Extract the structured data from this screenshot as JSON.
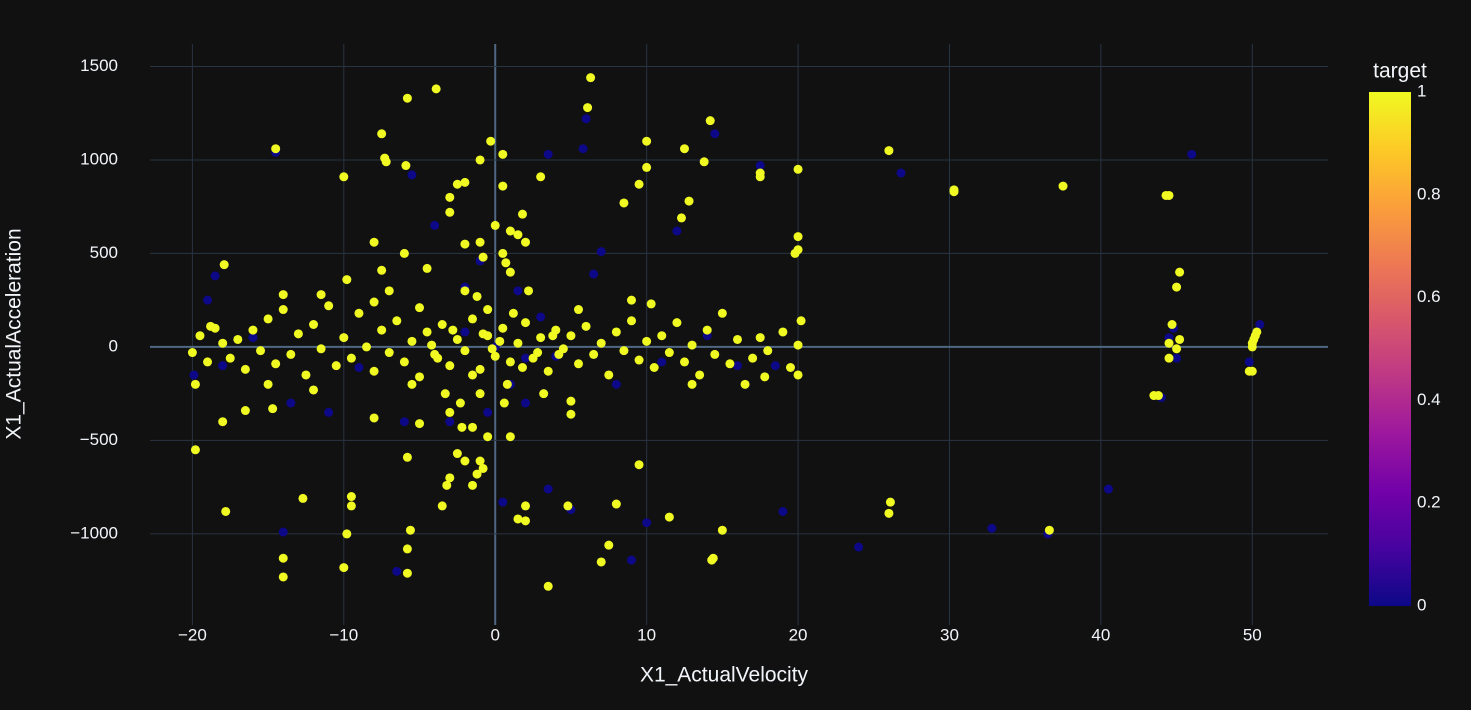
{
  "chart_data": {
    "type": "scatter",
    "x_label": "X1_ActualVelocity",
    "y_label": "X1_ActualAcceleration",
    "colorbar_title": "target",
    "xlim": [
      -22.8,
      55
    ],
    "ylim": [
      -1487,
      1620
    ],
    "clim": [
      0,
      1
    ],
    "xticks": [
      {
        "value": -20,
        "label": "−20"
      },
      {
        "value": -10,
        "label": "−10"
      },
      0,
      10,
      20,
      30,
      40,
      50
    ],
    "yticks": [
      {
        "value": -1000,
        "label": "−1000"
      },
      {
        "value": -500,
        "label": "−500"
      },
      0,
      500,
      1000,
      1500
    ],
    "cticks": [
      0,
      0.2,
      0.4,
      0.6,
      0.8,
      1
    ],
    "grid": true,
    "colorscale": [
      "#0d0887",
      "#46039f",
      "#7201a8",
      "#9c179e",
      "#bd3786",
      "#d8576b",
      "#ed7953",
      "#fb9f3a",
      "#fdca26",
      "#f0f921"
    ],
    "points": [
      [
        -19.9,
        -150,
        0
      ],
      [
        -18.5,
        380,
        0
      ],
      [
        -18,
        -100,
        0
      ],
      [
        -19,
        250,
        0
      ],
      [
        -14.5,
        1040,
        0
      ],
      [
        -13.5,
        -300,
        0
      ],
      [
        -14,
        -990,
        0
      ],
      [
        -11,
        -350,
        0
      ],
      [
        -6.5,
        -1200,
        0
      ],
      [
        -6,
        -400,
        0
      ],
      [
        -5.5,
        920,
        0
      ],
      [
        -4,
        650,
        0
      ],
      [
        -3,
        -400,
        0
      ],
      [
        -2,
        320,
        0
      ],
      [
        -1,
        460,
        0
      ],
      [
        -0.5,
        -350,
        0
      ],
      [
        0.5,
        -830,
        0
      ],
      [
        1,
        -200,
        0
      ],
      [
        1.5,
        300,
        0
      ],
      [
        2,
        -300,
        0
      ],
      [
        3.5,
        -760,
        0
      ],
      [
        3.5,
        1030,
        0
      ],
      [
        4,
        -50,
        0
      ],
      [
        5,
        -870,
        0
      ],
      [
        5.8,
        1060,
        0
      ],
      [
        6,
        1220,
        0
      ],
      [
        6.5,
        390,
        0
      ],
      [
        7,
        510,
        0
      ],
      [
        9,
        -1140,
        0
      ],
      [
        10,
        -940,
        0
      ],
      [
        12,
        620,
        0
      ],
      [
        14.5,
        1140,
        0
      ],
      [
        16,
        -100,
        0
      ],
      [
        17.5,
        970,
        0
      ],
      [
        19,
        -880,
        0
      ],
      [
        24,
        -1070,
        0
      ],
      [
        26.8,
        930,
        0
      ],
      [
        32.8,
        -970,
        0
      ],
      [
        36.5,
        -1000,
        0
      ],
      [
        40.5,
        -760,
        0
      ],
      [
        44.5,
        50,
        0
      ],
      [
        44.8,
        100,
        0
      ],
      [
        45,
        -60,
        0
      ],
      [
        46,
        1030,
        0
      ],
      [
        49.8,
        -80,
        0
      ],
      [
        50.5,
        120,
        0
      ],
      [
        44,
        -270,
        0
      ],
      [
        3,
        160,
        0
      ],
      [
        -9,
        -110,
        0
      ],
      [
        8,
        -200,
        0
      ],
      [
        0,
        0,
        0
      ],
      [
        -2,
        80,
        0
      ],
      [
        2,
        -60,
        0
      ],
      [
        11,
        -80,
        0
      ],
      [
        -16,
        50,
        0
      ],
      [
        14,
        60,
        0
      ],
      [
        18.5,
        -100,
        0
      ],
      [
        -14.5,
        1060,
        1
      ],
      [
        -12.7,
        -810,
        1
      ],
      [
        -10,
        910,
        1
      ],
      [
        -9.8,
        -1000,
        1
      ],
      [
        -10,
        -1180,
        1
      ],
      [
        -9.5,
        -850,
        1
      ],
      [
        -9.5,
        -800,
        1
      ],
      [
        -7.5,
        1140,
        1
      ],
      [
        -7.3,
        1010,
        1
      ],
      [
        -7.2,
        990,
        1
      ],
      [
        -5.8,
        1330,
        1
      ],
      [
        -5.9,
        970,
        1
      ],
      [
        -5.6,
        -980,
        1
      ],
      [
        -5.8,
        -1080,
        1
      ],
      [
        -5.8,
        -1210,
        1
      ],
      [
        -3.9,
        1380,
        1
      ],
      [
        -2,
        880,
        1
      ],
      [
        -2.5,
        870,
        1
      ],
      [
        -3,
        800,
        1
      ],
      [
        -3,
        720,
        1
      ],
      [
        -1,
        1000,
        1
      ],
      [
        -0.3,
        1100,
        1
      ],
      [
        0.5,
        1030,
        1
      ],
      [
        0.5,
        860,
        1
      ],
      [
        1.8,
        710,
        1
      ],
      [
        3,
        910,
        1
      ],
      [
        3.5,
        -1280,
        1
      ],
      [
        6.3,
        1440,
        1
      ],
      [
        6.1,
        1280,
        1
      ],
      [
        7,
        -1150,
        1
      ],
      [
        7.5,
        -1060,
        1
      ],
      [
        8,
        -840,
        1
      ],
      [
        8.5,
        770,
        1
      ],
      [
        9.5,
        870,
        1
      ],
      [
        9.5,
        -630,
        1
      ],
      [
        10,
        1100,
        1
      ],
      [
        10,
        960,
        1
      ],
      [
        11.5,
        -910,
        1
      ],
      [
        12.5,
        1060,
        1
      ],
      [
        12.8,
        780,
        1
      ],
      [
        12.3,
        690,
        1
      ],
      [
        13.8,
        990,
        1
      ],
      [
        14.2,
        1210,
        1
      ],
      [
        14.4,
        -1130,
        1
      ],
      [
        14.3,
        -1140,
        1
      ],
      [
        15,
        -980,
        1
      ],
      [
        17.5,
        930,
        1
      ],
      [
        17.5,
        910,
        1
      ],
      [
        20,
        950,
        1
      ],
      [
        20,
        590,
        1
      ],
      [
        20,
        520,
        1
      ],
      [
        19.8,
        500,
        1
      ],
      [
        26,
        1050,
        1
      ],
      [
        26.1,
        -830,
        1
      ],
      [
        26,
        -890,
        1
      ],
      [
        30.3,
        840,
        1
      ],
      [
        30.3,
        830,
        1
      ],
      [
        37.5,
        860,
        1
      ],
      [
        36.6,
        -980,
        1
      ],
      [
        44.3,
        810,
        1
      ],
      [
        44.5,
        810,
        1
      ],
      [
        45.2,
        400,
        1
      ],
      [
        45,
        320,
        1
      ],
      [
        44.7,
        120,
        1
      ],
      [
        44.5,
        20,
        1
      ],
      [
        44.5,
        -60,
        1
      ],
      [
        45,
        -10,
        1
      ],
      [
        43.5,
        -260,
        1
      ],
      [
        43.8,
        -260,
        1
      ],
      [
        45.2,
        40,
        1
      ],
      [
        49.8,
        -130,
        1
      ],
      [
        50,
        -130,
        1
      ],
      [
        50,
        0,
        1
      ],
      [
        50.1,
        40,
        1
      ],
      [
        50.2,
        60,
        1
      ],
      [
        50.3,
        80,
        1
      ],
      [
        50,
        20,
        1
      ],
      [
        -14,
        -1230,
        1
      ],
      [
        -14,
        -1130,
        1
      ],
      [
        -17.8,
        -880,
        1
      ],
      [
        -19.8,
        -550,
        1
      ],
      [
        -17.9,
        440,
        1
      ],
      [
        -18,
        -400,
        1
      ],
      [
        -16.5,
        -340,
        1
      ],
      [
        -14.7,
        -330,
        1
      ],
      [
        -8,
        560,
        1
      ],
      [
        -7.5,
        410,
        1
      ],
      [
        -6,
        500,
        1
      ],
      [
        -5,
        210,
        1
      ],
      [
        -4.5,
        420,
        1
      ],
      [
        -8,
        -380,
        1
      ],
      [
        -5.8,
        -590,
        1
      ],
      [
        -5,
        -410,
        1
      ],
      [
        -3.5,
        -850,
        1
      ],
      [
        -3.2,
        -740,
        1
      ],
      [
        -3,
        -700,
        1
      ],
      [
        -2.5,
        -570,
        1
      ],
      [
        -2,
        -610,
        1
      ],
      [
        -1.5,
        -740,
        1
      ],
      [
        -1,
        -610,
        1
      ],
      [
        -0.5,
        -480,
        1
      ],
      [
        -1.2,
        -680,
        1
      ],
      [
        -0.8,
        -650,
        1
      ],
      [
        -2.2,
        -430,
        1
      ],
      [
        -1.5,
        -430,
        1
      ],
      [
        1,
        -480,
        1
      ],
      [
        1.5,
        -920,
        1
      ],
      [
        2,
        -930,
        1
      ],
      [
        2,
        -850,
        1
      ],
      [
        4.8,
        -850,
        1
      ],
      [
        5,
        -290,
        1
      ],
      [
        5,
        -360,
        1
      ],
      [
        -2,
        550,
        1
      ],
      [
        -1,
        560,
        1
      ],
      [
        -0.8,
        480,
        1
      ],
      [
        0,
        650,
        1
      ],
      [
        0.7,
        450,
        1
      ],
      [
        1,
        620,
        1
      ],
      [
        1.5,
        600,
        1
      ],
      [
        2,
        560,
        1
      ],
      [
        1,
        400,
        1
      ],
      [
        0.5,
        500,
        1
      ],
      [
        -2,
        300,
        1
      ],
      [
        -3,
        -350,
        1
      ],
      [
        -1,
        -250,
        1
      ],
      [
        -20,
        -30,
        1
      ],
      [
        -19.5,
        60,
        1
      ],
      [
        -19,
        -80,
        1
      ],
      [
        -18.5,
        100,
        1
      ],
      [
        -18,
        20,
        1
      ],
      [
        -17.5,
        -60,
        1
      ],
      [
        -17,
        40,
        1
      ],
      [
        -16.5,
        -120,
        1
      ],
      [
        -16,
        90,
        1
      ],
      [
        -15.5,
        -20,
        1
      ],
      [
        -15,
        150,
        1
      ],
      [
        -14.5,
        -90,
        1
      ],
      [
        -14,
        200,
        1
      ],
      [
        -13.5,
        -40,
        1
      ],
      [
        -13,
        70,
        1
      ],
      [
        -12.5,
        -150,
        1
      ],
      [
        -12,
        120,
        1
      ],
      [
        -11.5,
        -10,
        1
      ],
      [
        -11,
        220,
        1
      ],
      [
        -10.5,
        -100,
        1
      ],
      [
        -10,
        50,
        1
      ],
      [
        -9.5,
        -60,
        1
      ],
      [
        -9,
        180,
        1
      ],
      [
        -8.5,
        0,
        1
      ],
      [
        -8,
        -130,
        1
      ],
      [
        -7.5,
        90,
        1
      ],
      [
        -7,
        -30,
        1
      ],
      [
        -6.5,
        140,
        1
      ],
      [
        -6,
        -80,
        1
      ],
      [
        -5.5,
        30,
        1
      ],
      [
        -5,
        -160,
        1
      ],
      [
        -4.5,
        80,
        1
      ],
      [
        -4,
        -40,
        1
      ],
      [
        -3.5,
        120,
        1
      ],
      [
        -3,
        -100,
        1
      ],
      [
        -2.5,
        40,
        1
      ],
      [
        -2,
        -20,
        1
      ],
      [
        -1.5,
        150,
        1
      ],
      [
        -1,
        -120,
        1
      ],
      [
        -0.5,
        60,
        1
      ],
      [
        0,
        -50,
        1
      ],
      [
        0.5,
        100,
        1
      ],
      [
        1,
        -80,
        1
      ],
      [
        1.5,
        20,
        1
      ],
      [
        2,
        130,
        1
      ],
      [
        2.5,
        -60,
        1
      ],
      [
        3,
        50,
        1
      ],
      [
        3.5,
        -130,
        1
      ],
      [
        4,
        90,
        1
      ],
      [
        4.5,
        -10,
        1
      ],
      [
        5,
        60,
        1
      ],
      [
        5.5,
        -90,
        1
      ],
      [
        6,
        110,
        1
      ],
      [
        6.5,
        -40,
        1
      ],
      [
        7,
        20,
        1
      ],
      [
        7.5,
        -150,
        1
      ],
      [
        8,
        80,
        1
      ],
      [
        8.5,
        -20,
        1
      ],
      [
        9,
        140,
        1
      ],
      [
        9.5,
        -70,
        1
      ],
      [
        10,
        30,
        1
      ],
      [
        10.5,
        -110,
        1
      ],
      [
        11,
        60,
        1
      ],
      [
        11.5,
        -30,
        1
      ],
      [
        12,
        130,
        1
      ],
      [
        12.5,
        -80,
        1
      ],
      [
        13,
        10,
        1
      ],
      [
        13.5,
        -150,
        1
      ],
      [
        14,
        90,
        1
      ],
      [
        14.5,
        -40,
        1
      ],
      [
        15,
        180,
        1
      ],
      [
        15.5,
        -90,
        1
      ],
      [
        16,
        40,
        1
      ],
      [
        17,
        -60,
        1
      ],
      [
        17.5,
        50,
        1
      ],
      [
        18,
        -20,
        1
      ],
      [
        19,
        80,
        1
      ],
      [
        19.5,
        -110,
        1
      ],
      [
        20,
        10,
        1
      ],
      [
        20.2,
        140,
        1
      ],
      [
        20,
        -150,
        1
      ],
      [
        -19.8,
        -200,
        1
      ],
      [
        -12,
        -230,
        1
      ],
      [
        -11.5,
        280,
        1
      ],
      [
        -14,
        280,
        1
      ],
      [
        -9.8,
        360,
        1
      ],
      [
        -15,
        -200,
        1
      ],
      [
        -8,
        240,
        1
      ],
      [
        -0.5,
        200,
        1
      ],
      [
        0.8,
        -200,
        1
      ],
      [
        -1.5,
        -150,
        1
      ],
      [
        1.2,
        180,
        1
      ],
      [
        -2.8,
        90,
        1
      ],
      [
        2.8,
        -30,
        1
      ],
      [
        -0.2,
        -10,
        1
      ],
      [
        0.3,
        30,
        1
      ],
      [
        -0.8,
        70,
        1
      ],
      [
        1.8,
        -110,
        1
      ],
      [
        -3.8,
        -60,
        1
      ],
      [
        3.8,
        60,
        1
      ],
      [
        -4.2,
        10,
        1
      ],
      [
        4.2,
        -40,
        1
      ],
      [
        5.5,
        200,
        1
      ],
      [
        -5.5,
        -200,
        1
      ],
      [
        9,
        250,
        1
      ],
      [
        10.3,
        230,
        1
      ],
      [
        13,
        -200,
        1
      ],
      [
        16.5,
        -200,
        1
      ],
      [
        17.8,
        -160,
        1
      ],
      [
        -18.8,
        110,
        1
      ],
      [
        -7,
        300,
        1
      ],
      [
        -3.3,
        -250,
        1
      ],
      [
        -1.2,
        270,
        1
      ],
      [
        0.6,
        -300,
        1
      ],
      [
        2.2,
        300,
        1
      ],
      [
        -2.3,
        -300,
        1
      ],
      [
        3.2,
        -250,
        1
      ]
    ]
  }
}
